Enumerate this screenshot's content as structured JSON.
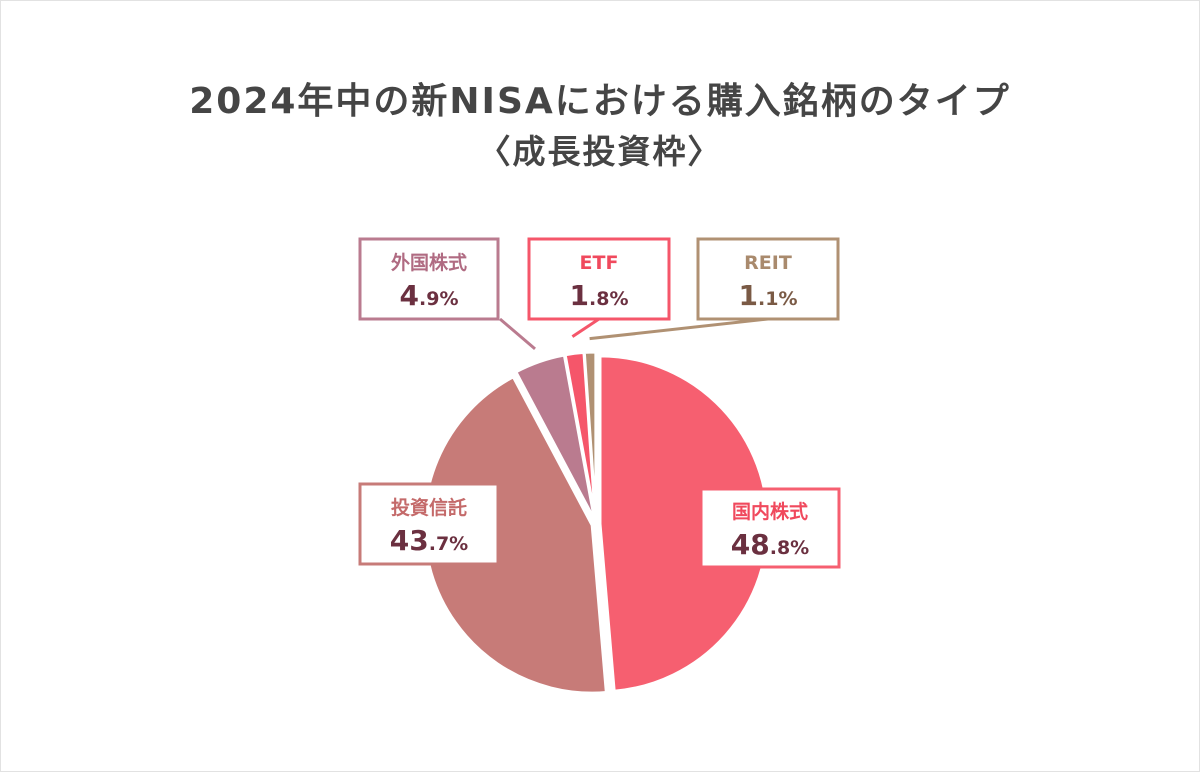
{
  "title": "2024年中の新NISAにおける購入銘柄のタイプ",
  "subtitle": "〈成長投資枠〉",
  "chart_data": {
    "type": "pie",
    "title": "2024年中の新NISAにおける購入銘柄のタイプ",
    "subtitle": "〈成長投資枠〉",
    "unit": "%",
    "slices": [
      {
        "key": "domestic",
        "label": "国内株式",
        "value": 48.8,
        "int": "48",
        "frac": ".8%",
        "color": "#f65f70",
        "label_color": "#f0495d",
        "value_color": "#6b3040"
      },
      {
        "key": "trust",
        "label": "投資信託",
        "value": 43.7,
        "int": "43",
        "frac": ".7%",
        "color": "#c77b78",
        "label_color": "#c46a6a",
        "value_color": "#6b3040"
      },
      {
        "key": "foreign",
        "label": "外国株式",
        "value": 4.9,
        "int": "4",
        "frac": ".9%",
        "color": "#ba7b8f",
        "label_color": "#b06b82",
        "value_color": "#6b3040"
      },
      {
        "key": "etf",
        "label": "ETF",
        "value": 1.8,
        "int": "1",
        "frac": ".8%",
        "color": "#f5566a",
        "label_color": "#f0495d",
        "value_color": "#6b3040"
      },
      {
        "key": "reit",
        "label": "REIT",
        "value": 1.1,
        "int": "1",
        "frac": ".1%",
        "color": "#b09173",
        "label_color": "#a98a6d",
        "value_color": "#7a5a45"
      }
    ]
  }
}
